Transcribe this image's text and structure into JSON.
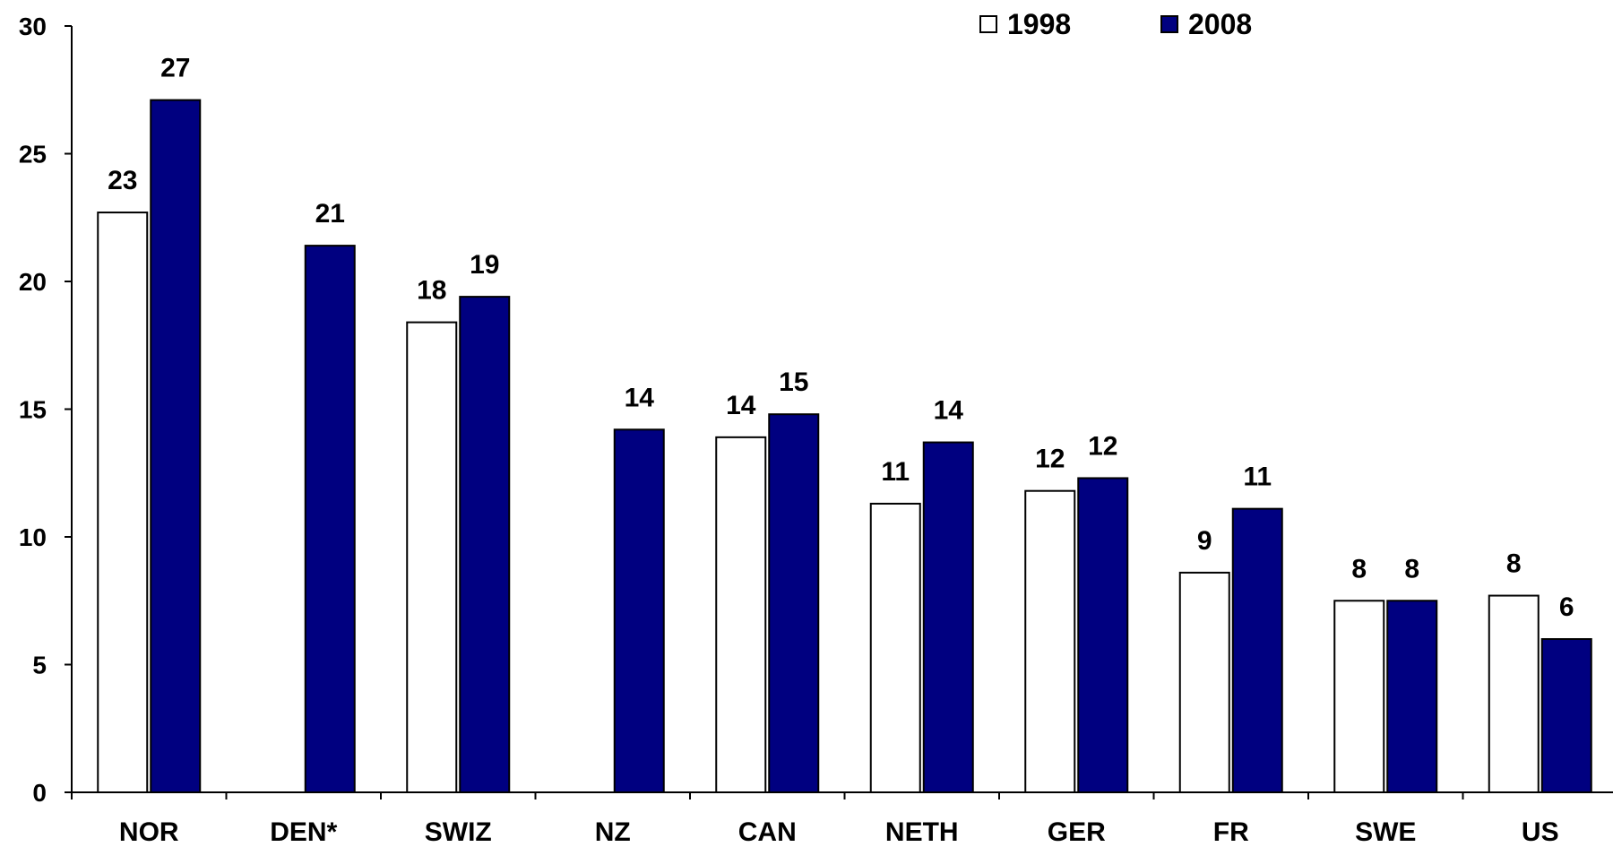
{
  "chart_data": {
    "type": "bar",
    "categories": [
      "NOR",
      "DEN*",
      "SWIZ",
      "NZ",
      "CAN",
      "NETH",
      "GER",
      "FR",
      "SWE",
      "US"
    ],
    "series": [
      {
        "name": "1998",
        "color": "#ffffff",
        "values": [
          22.7,
          null,
          18.4,
          null,
          13.9,
          11.3,
          11.8,
          8.6,
          7.5,
          7.7
        ],
        "labels": [
          "23",
          "",
          "18",
          "",
          "14",
          "11",
          "12",
          "9",
          "8",
          "8"
        ]
      },
      {
        "name": "2008",
        "color": "#000080",
        "values": [
          27.1,
          21.4,
          19.4,
          14.2,
          14.8,
          13.7,
          12.3,
          11.1,
          7.5,
          6.0
        ],
        "labels": [
          "27",
          "21",
          "19",
          "14",
          "15",
          "14",
          "12",
          "11",
          "8",
          "6"
        ]
      }
    ],
    "ylim": [
      0,
      30
    ],
    "yticks": [
      "0",
      "5",
      "10",
      "15",
      "20",
      "25",
      "30"
    ],
    "legend_position": "top-right",
    "grid": false
  }
}
